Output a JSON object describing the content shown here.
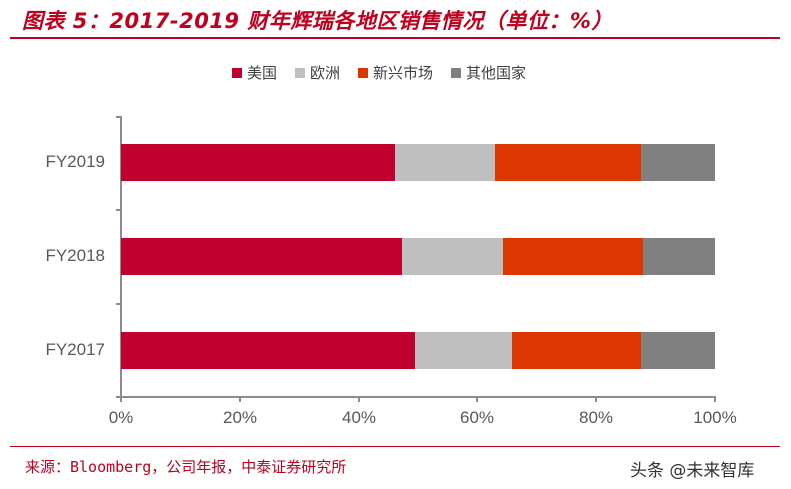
{
  "header": {
    "title": "图表 5：2017-2019 财年辉瑞各地区销售情况（单位：%）"
  },
  "footer": {
    "source": "来源：Bloomberg，公司年报，中泰证券研究所",
    "watermark": "头条 @未来智库"
  },
  "colors": {
    "accent": "#c0001e",
    "us": "#c0002e",
    "europe": "#bfbfbf",
    "emerging": "#dc3700",
    "other": "#808080"
  },
  "legend": [
    {
      "label": "美国",
      "color": "#c0002e"
    },
    {
      "label": "欧洲",
      "color": "#bfbfbf"
    },
    {
      "label": "新兴市场",
      "color": "#dc3700"
    },
    {
      "label": "其他国家",
      "color": "#808080"
    }
  ],
  "axis": {
    "x_ticks": [
      "0%",
      "20%",
      "40%",
      "60%",
      "80%",
      "100%"
    ],
    "y_ticks": [
      "FY2019",
      "FY2018",
      "FY2017"
    ]
  },
  "chart_data": {
    "type": "bar",
    "orientation": "horizontal",
    "stacked": "percent",
    "title": "图表 5：2017-2019 财年辉瑞各地区销售情况（单位：%）",
    "xlabel": "",
    "ylabel": "",
    "xlim": [
      0,
      100
    ],
    "x_tick_labels": [
      "0%",
      "20%",
      "40%",
      "60%",
      "80%",
      "100%"
    ],
    "categories": [
      "FY2019",
      "FY2018",
      "FY2017"
    ],
    "series": [
      {
        "name": "美国",
        "color": "#c0002e",
        "values": [
          46.1,
          47.3,
          49.5
        ]
      },
      {
        "name": "欧洲",
        "color": "#bfbfbf",
        "values": [
          16.8,
          17.0,
          16.3
        ]
      },
      {
        "name": "新兴市场",
        "color": "#dc3700",
        "values": [
          24.6,
          23.6,
          21.7
        ]
      },
      {
        "name": "其他国家",
        "color": "#808080",
        "values": [
          12.5,
          12.1,
          12.5
        ]
      }
    ],
    "legend_position": "top",
    "grid": false,
    "source": "来源：Bloomberg，公司年报，中泰证券研究所"
  }
}
